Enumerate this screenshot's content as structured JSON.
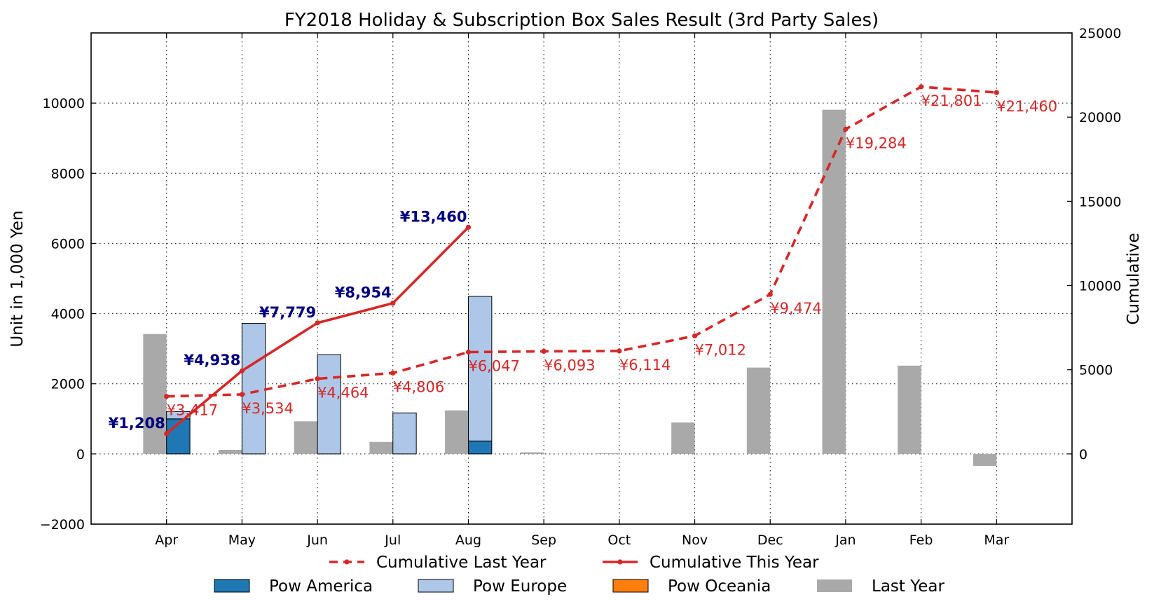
{
  "chart_data": {
    "type": "bar",
    "title": "FY2018 Holiday & Subscription Box Sales Result (3rd Party Sales)",
    "ylabel": "Unit in 1,000 Yen",
    "y2label": "Cumulative",
    "categories": [
      "Apr",
      "May",
      "Jun",
      "Jul",
      "Aug",
      "Sep",
      "Oct",
      "Nov",
      "Dec",
      "Jan",
      "Feb",
      "Mar"
    ],
    "ylim": [
      -2000,
      12000
    ],
    "y2lim": [
      -4167,
      25000
    ],
    "yticks": [
      -2000,
      0,
      2000,
      4000,
      6000,
      8000,
      10000
    ],
    "y2ticks": [
      0,
      5000,
      10000,
      15000,
      20000,
      25000
    ],
    "grid": true,
    "legend_position": "bottom",
    "series": [
      {
        "name": "Pow America",
        "kind": "bar",
        "stack": "this",
        "color": "#1f77b4",
        "values": [
          1000,
          0,
          0,
          0,
          370,
          null,
          null,
          null,
          null,
          null,
          null,
          null
        ]
      },
      {
        "name": "Pow Europe",
        "kind": "bar",
        "stack": "this",
        "color": "#aec7e8",
        "values": [
          208,
          3720,
          2830,
          1170,
          4120,
          null,
          null,
          null,
          null,
          null,
          null,
          null
        ]
      },
      {
        "name": "Pow Oceania",
        "kind": "bar",
        "stack": "this",
        "color": "#ff7f0e",
        "values": [
          0,
          0,
          0,
          0,
          0,
          null,
          null,
          null,
          null,
          null,
          null,
          null
        ]
      },
      {
        "name": "Last Year",
        "kind": "bar",
        "color": "#a9a9a9",
        "values": [
          3417,
          117,
          930,
          342,
          1241,
          46,
          21,
          898,
          2462,
          9810,
          2517,
          -341
        ]
      },
      {
        "name": "Cumulative Last Year",
        "kind": "line",
        "axis": "right",
        "style": "dashed",
        "color": "#d62728",
        "values": [
          3417,
          3534,
          4464,
          4806,
          6047,
          6093,
          6114,
          7012,
          9474,
          19284,
          21801,
          21460
        ],
        "labels": [
          "¥3,417",
          "¥3,534",
          "¥4,464",
          "¥4,806",
          "¥6,047",
          "¥6,093",
          "¥6,114",
          "¥7,012",
          "¥9,474",
          "¥19,284",
          "¥21,801",
          "¥21,460"
        ],
        "label_color": "#d62728"
      },
      {
        "name": "Cumulative This Year",
        "kind": "line",
        "axis": "right",
        "style": "solid",
        "color": "#d62728",
        "values": [
          1208,
          4938,
          7779,
          8954,
          13460,
          null,
          null,
          null,
          null,
          null,
          null,
          null
        ],
        "labels": [
          "¥1,208",
          "¥4,938",
          "¥7,779",
          "¥8,954",
          "¥13,460"
        ],
        "label_color": "#000080"
      }
    ],
    "legend": [
      [
        "Cumulative Last Year",
        "Cumulative This Year"
      ],
      [
        "Pow America",
        "Pow Europe",
        "Pow Oceania",
        "Last Year"
      ]
    ]
  }
}
